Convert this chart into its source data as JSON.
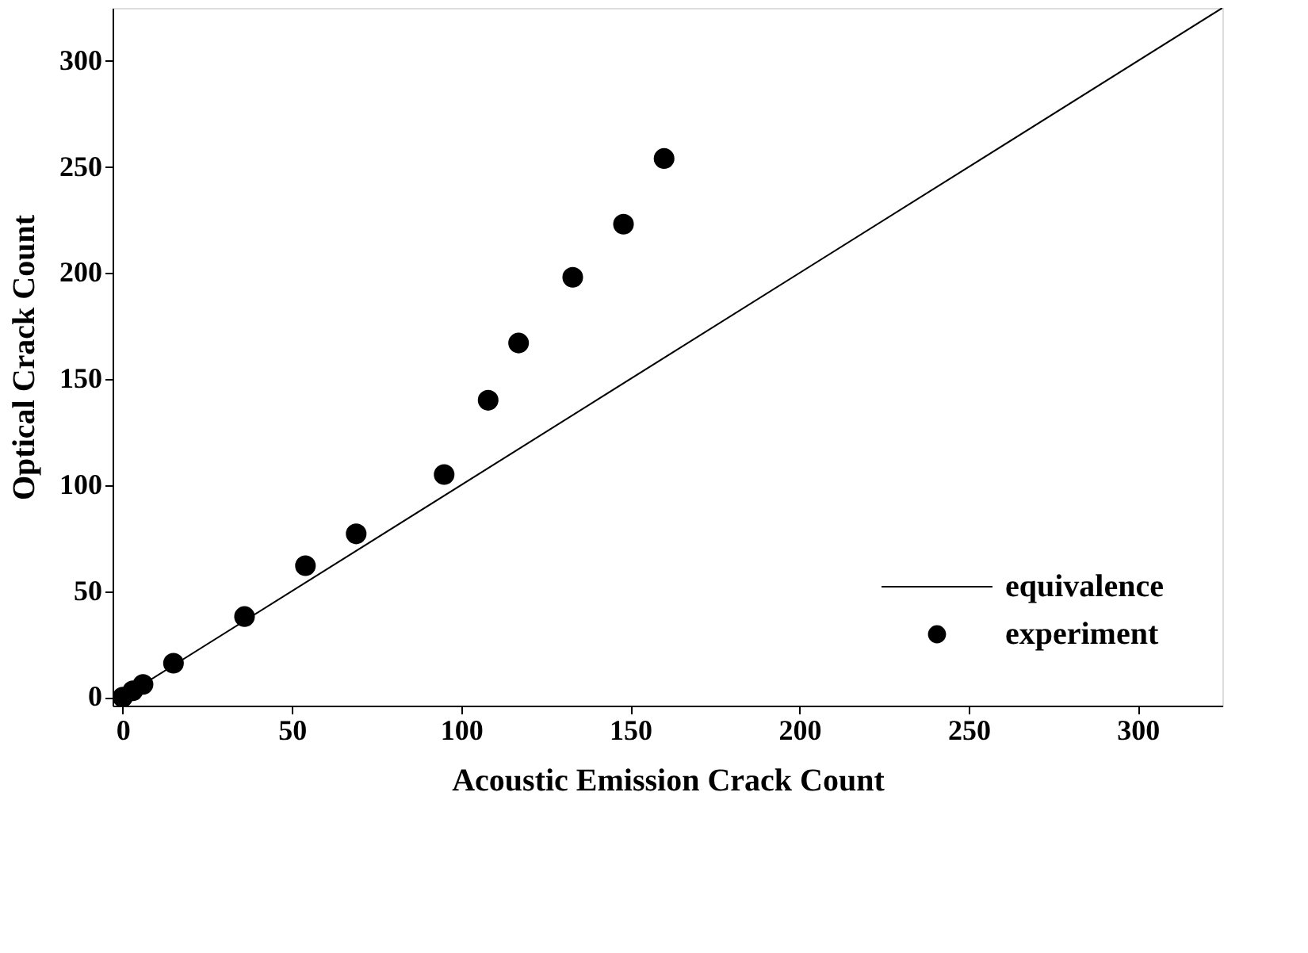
{
  "chart_data": {
    "type": "scatter",
    "xlabel": "Acoustic Emission Crack Count",
    "ylabel": "Optical Crack Count",
    "series": [
      {
        "name": "equivalence",
        "type": "line",
        "color": "#000000",
        "x": [
          0,
          325
        ],
        "values": [
          0,
          325
        ]
      },
      {
        "name": "experiment",
        "color": "#000000",
        "marker": "circle",
        "x": [
          0,
          3,
          6,
          15,
          36,
          54,
          69,
          95,
          108,
          117,
          133,
          148,
          160
        ],
        "values": [
          0,
          3,
          6,
          16,
          38,
          62,
          77,
          105,
          140,
          167,
          198,
          223,
          254
        ]
      }
    ],
    "xlim": [
      -3,
      325
    ],
    "ylim": [
      -4,
      325
    ],
    "xticks": [
      0,
      50,
      100,
      150,
      200,
      250,
      300
    ],
    "yticks": [
      0,
      50,
      100,
      150,
      200,
      250,
      300
    ],
    "grid": false,
    "legend": "bottom right"
  }
}
